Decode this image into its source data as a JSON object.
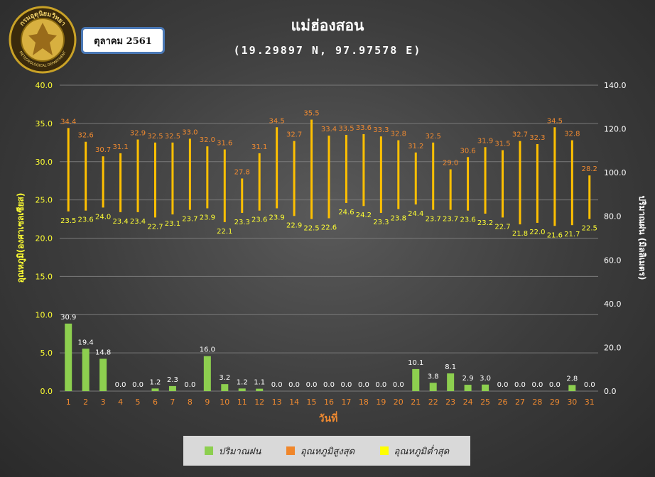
{
  "header": {
    "title": "แม่ฮ่องสอน",
    "subtitle": "(19.29897 N, 97.97578 E)",
    "month": "ตุลาคม 2561",
    "logo_text": "กรมอุตุนิยมวิทยา",
    "logo_text_en": "METEOROLOGICAL DEPARTMENT"
  },
  "colors": {
    "rain": "#8dcf4f",
    "tmax_label": "#f08a30",
    "tmin_label": "#ffff33",
    "bar_line": "#ffc000",
    "axis_left": "#ffff33",
    "axis_x": "#f08a30"
  },
  "legend": [
    {
      "label": "ปริมาณฝน",
      "color": "#8dcf4f"
    },
    {
      "label": "อุณหภูมิสูงสุด",
      "color": "#f0862a"
    },
    {
      "label": "อุณหภูมิต่ำสุด",
      "color": "#ffff00"
    }
  ],
  "chart_data": {
    "type": "bar",
    "xlabel": "วันที่",
    "ylabel_left": "อุณหภูมิ(องศาเซลเซียส)",
    "ylabel_right": "ปริมาณฝน (มิลลิเมตร)",
    "ylim_left": [
      0,
      40
    ],
    "ylim_right": [
      0,
      140
    ],
    "left_ticks": [
      "0.0",
      "5.0",
      "10.0",
      "15.0",
      "20.0",
      "25.0",
      "30.0",
      "35.0",
      "40.0"
    ],
    "right_ticks": [
      "0.0",
      "20.0",
      "40.0",
      "60.0",
      "80.0",
      "100.0",
      "120.0",
      "140.0"
    ],
    "categories": [
      "1",
      "2",
      "3",
      "4",
      "5",
      "6",
      "7",
      "8",
      "9",
      "10",
      "11",
      "12",
      "13",
      "14",
      "15",
      "16",
      "17",
      "18",
      "19",
      "20",
      "21",
      "22",
      "23",
      "24",
      "25",
      "26",
      "27",
      "28",
      "29",
      "30",
      "31"
    ],
    "series": [
      {
        "name": "ปริมาณฝน",
        "values": [
          30.9,
          19.4,
          14.8,
          0.0,
          0.0,
          1.2,
          2.3,
          0.0,
          16.0,
          3.2,
          1.2,
          1.1,
          0.0,
          0.0,
          0.0,
          0.0,
          0.0,
          0.0,
          0.0,
          0.0,
          10.1,
          3.8,
          8.1,
          2.9,
          3.0,
          0.0,
          0.0,
          0.0,
          0.0,
          2.8,
          0.0
        ]
      },
      {
        "name": "อุณหภูมิสูงสุด",
        "values": [
          34.4,
          32.6,
          30.7,
          31.1,
          32.9,
          32.5,
          32.5,
          33.0,
          32.0,
          31.6,
          27.8,
          31.1,
          34.5,
          32.7,
          35.5,
          33.4,
          33.5,
          33.6,
          33.3,
          32.8,
          31.2,
          32.5,
          29.0,
          30.6,
          31.9,
          31.5,
          32.7,
          32.3,
          34.5,
          32.8,
          28.2
        ]
      },
      {
        "name": "อุณหภูมิต่ำสุด",
        "values": [
          23.5,
          23.6,
          24.0,
          23.4,
          23.4,
          22.7,
          23.1,
          23.7,
          23.9,
          22.1,
          23.3,
          23.6,
          23.9,
          22.9,
          22.5,
          22.6,
          24.6,
          24.2,
          23.3,
          23.8,
          24.4,
          23.7,
          23.7,
          23.6,
          23.2,
          22.7,
          21.8,
          22.0,
          21.6,
          21.7,
          22.5
        ]
      }
    ]
  }
}
